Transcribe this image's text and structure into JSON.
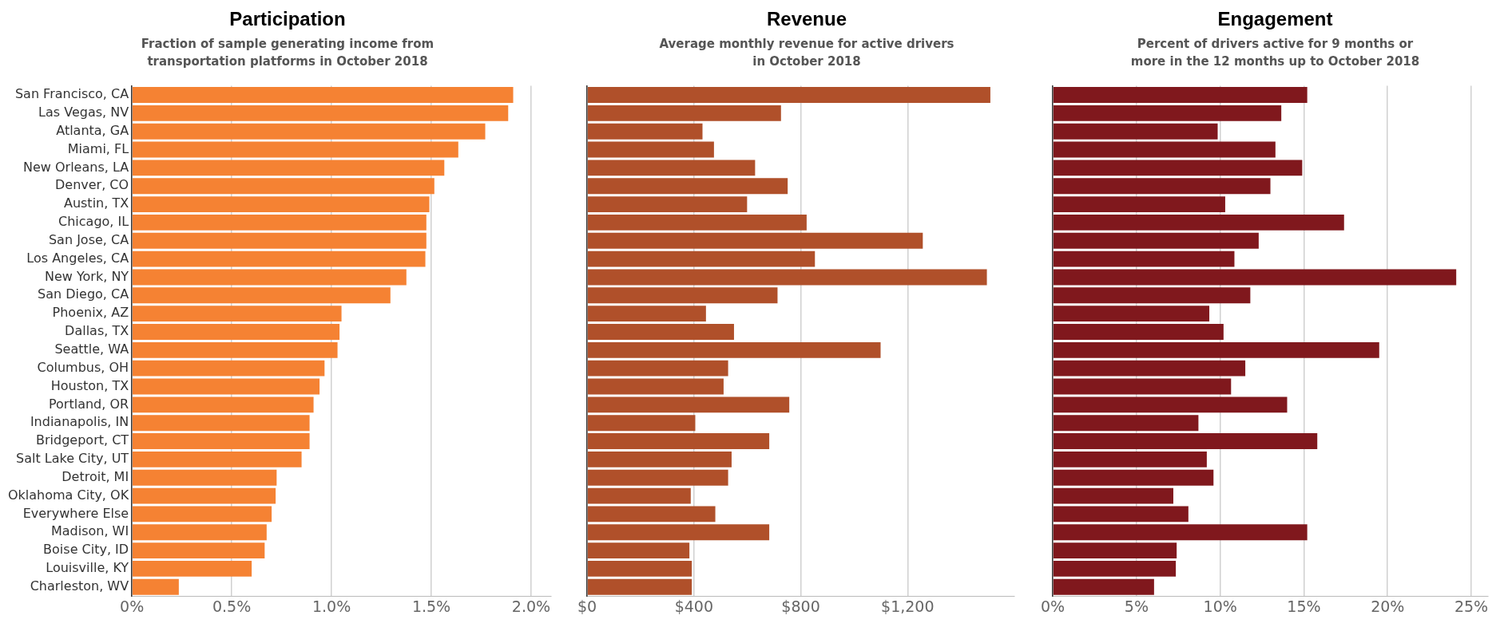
{
  "chart_data": [
    {
      "type": "bar",
      "orientation": "horizontal",
      "title": "Participation",
      "subtitle": "Fraction of sample generating income from transportation platforms in October 2018",
      "categories": [
        "San Francisco, CA",
        "Las Vegas, NV",
        "Atlanta, GA",
        "Miami, FL",
        "New Orleans, LA",
        "Denver, CO",
        "Austin, TX",
        "Chicago, IL",
        "San Jose, CA",
        "Los Angeles, CA",
        "New York, NY",
        "San Diego, CA",
        "Phoenix, AZ",
        "Dallas, TX",
        "Seattle, WA",
        "Columbus, OH",
        "Houston, TX",
        "Portland, OR",
        "Indianapolis, IN",
        "Bridgeport, CT",
        "Salt Lake City, UT",
        "Detroit, MI",
        "Oklahoma City, OK",
        "Everywhere Else",
        "Madison, WI",
        "Boise City, ID",
        "Louisville, KY",
        "Charleston, WV"
      ],
      "values": [
        1.91,
        1.885,
        1.77,
        1.635,
        1.565,
        1.515,
        1.49,
        1.475,
        1.475,
        1.47,
        1.375,
        1.295,
        1.05,
        1.04,
        1.03,
        0.965,
        0.94,
        0.91,
        0.89,
        0.89,
        0.85,
        0.725,
        0.72,
        0.7,
        0.675,
        0.665,
        0.6,
        0.235
      ],
      "color": "#f58233",
      "xlim": [
        0,
        2.1
      ],
      "xticks": [
        {
          "value": 0,
          "label": "0%"
        },
        {
          "value": 0.5,
          "label": "0.5%"
        },
        {
          "value": 1,
          "label": "1.0%"
        },
        {
          "value": 1.5,
          "label": "1.5%"
        },
        {
          "value": 2,
          "label": "2.0%"
        }
      ],
      "grid": "x"
    },
    {
      "type": "bar",
      "orientation": "horizontal",
      "title": "Revenue",
      "subtitle": "Average monthly revenue for active drivers in October 2018",
      "categories": [
        null,
        null,
        null,
        null,
        null,
        null,
        null,
        null,
        null,
        null,
        null,
        null,
        null,
        null,
        null,
        null,
        null,
        null,
        null,
        null,
        null,
        null,
        null,
        null,
        null,
        null,
        null,
        null
      ],
      "values": [
        1510,
        726,
        432,
        475,
        629,
        751,
        599,
        822,
        1257,
        853,
        1497,
        713,
        445,
        550,
        1099,
        528,
        511,
        757,
        405,
        682,
        541,
        528,
        388,
        480,
        682,
        383,
        392,
        392
      ],
      "color": "#b0502a",
      "xlim": [
        0,
        1600
      ],
      "xticks": [
        {
          "value": 0,
          "label": "$0"
        },
        {
          "value": 400,
          "label": "$400"
        },
        {
          "value": 800,
          "label": "$800"
        },
        {
          "value": 1200,
          "label": "$1,200"
        }
      ],
      "grid": "x"
    },
    {
      "type": "bar",
      "orientation": "horizontal",
      "title": "Engagement",
      "subtitle": "Percent of drivers active for 9 months or more in the 12 months up to October 2018",
      "categories": [
        null,
        null,
        null,
        null,
        null,
        null,
        null,
        null,
        null,
        null,
        null,
        null,
        null,
        null,
        null,
        null,
        null,
        null,
        null,
        null,
        null,
        null,
        null,
        null,
        null,
        null,
        null,
        null
      ],
      "values": [
        15.2,
        13.65,
        9.85,
        13.3,
        14.9,
        13.0,
        10.3,
        17.4,
        12.3,
        10.85,
        24.1,
        11.8,
        9.35,
        10.2,
        19.5,
        11.5,
        10.65,
        14.0,
        8.7,
        15.8,
        9.2,
        9.6,
        7.2,
        8.1,
        15.2,
        7.4,
        7.35,
        6.05
      ],
      "color": "#80181d",
      "xlim": [
        0,
        26
      ],
      "xticks": [
        {
          "value": 0,
          "label": "0%"
        },
        {
          "value": 5,
          "label": "5%"
        },
        {
          "value": 10,
          "label": "10%"
        },
        {
          "value": 15,
          "label": "15%"
        },
        {
          "value": 20,
          "label": "20%"
        },
        {
          "value": 25,
          "label": "25%"
        }
      ],
      "grid": "x"
    }
  ]
}
